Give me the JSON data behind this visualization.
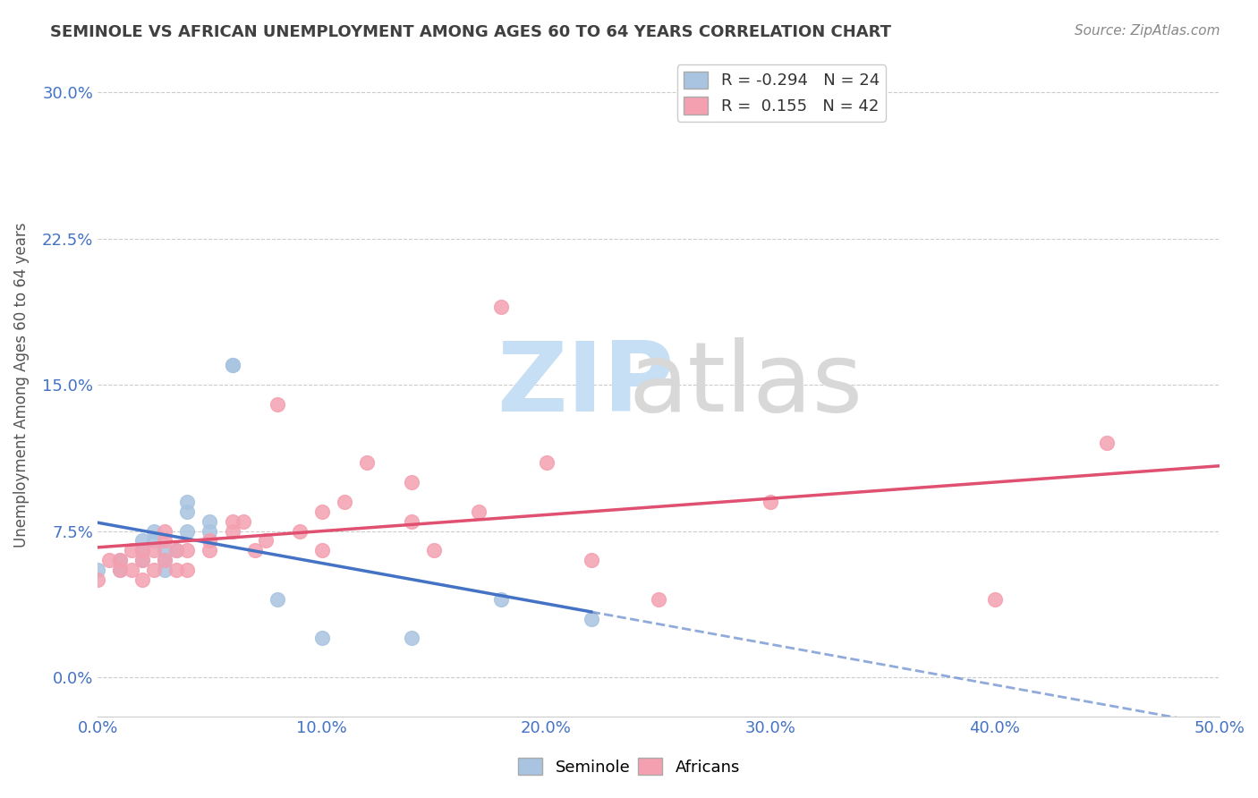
{
  "title": "SEMINOLE VS AFRICAN UNEMPLOYMENT AMONG AGES 60 TO 64 YEARS CORRELATION CHART",
  "source": "Source: ZipAtlas.com",
  "ylabel": "Unemployment Among Ages 60 to 64 years",
  "xlim": [
    0.0,
    0.5
  ],
  "ylim": [
    -0.02,
    0.32
  ],
  "xticks": [
    0.0,
    0.1,
    0.2,
    0.3,
    0.4,
    0.5
  ],
  "xticklabels": [
    "0.0%",
    "10.0%",
    "20.0%",
    "30.0%",
    "40.0%",
    "50.0%"
  ],
  "yticks": [
    0.0,
    0.075,
    0.15,
    0.225,
    0.3
  ],
  "yticklabels": [
    "0.0%",
    "7.5%",
    "15.0%",
    "22.5%",
    "30.0%"
  ],
  "legend_r_seminole": "-0.294",
  "legend_n_seminole": "24",
  "legend_r_african": "0.155",
  "legend_n_african": "42",
  "seminole_color": "#a8c4e0",
  "african_color": "#f4a0b0",
  "seminole_line_color": "#4472c4",
  "african_line_color": "#e05070",
  "tick_color": "#4472c4",
  "seminole_x": [
    0.0,
    0.01,
    0.01,
    0.02,
    0.02,
    0.02,
    0.025,
    0.025,
    0.03,
    0.03,
    0.03,
    0.035,
    0.04,
    0.04,
    0.04,
    0.05,
    0.05,
    0.06,
    0.06,
    0.08,
    0.1,
    0.14,
    0.18,
    0.22
  ],
  "seminole_y": [
    0.055,
    0.06,
    0.055,
    0.06,
    0.065,
    0.07,
    0.07,
    0.075,
    0.065,
    0.06,
    0.055,
    0.065,
    0.075,
    0.09,
    0.085,
    0.075,
    0.08,
    0.16,
    0.16,
    0.04,
    0.02,
    0.02,
    0.04,
    0.03
  ],
  "african_x": [
    0.0,
    0.005,
    0.01,
    0.01,
    0.015,
    0.015,
    0.02,
    0.02,
    0.02,
    0.025,
    0.025,
    0.03,
    0.03,
    0.03,
    0.035,
    0.035,
    0.04,
    0.04,
    0.05,
    0.05,
    0.06,
    0.06,
    0.065,
    0.07,
    0.075,
    0.08,
    0.09,
    0.1,
    0.1,
    0.11,
    0.12,
    0.14,
    0.14,
    0.15,
    0.17,
    0.18,
    0.2,
    0.22,
    0.25,
    0.3,
    0.4,
    0.45
  ],
  "african_y": [
    0.05,
    0.06,
    0.055,
    0.06,
    0.055,
    0.065,
    0.05,
    0.06,
    0.065,
    0.055,
    0.065,
    0.06,
    0.07,
    0.075,
    0.055,
    0.065,
    0.055,
    0.065,
    0.065,
    0.07,
    0.075,
    0.08,
    0.08,
    0.065,
    0.07,
    0.14,
    0.075,
    0.065,
    0.085,
    0.09,
    0.11,
    0.08,
    0.1,
    0.065,
    0.085,
    0.19,
    0.11,
    0.06,
    0.04,
    0.09,
    0.04,
    0.12
  ],
  "background_color": "#ffffff",
  "grid_color": "#cccccc",
  "seminole_line_split": 0.22
}
